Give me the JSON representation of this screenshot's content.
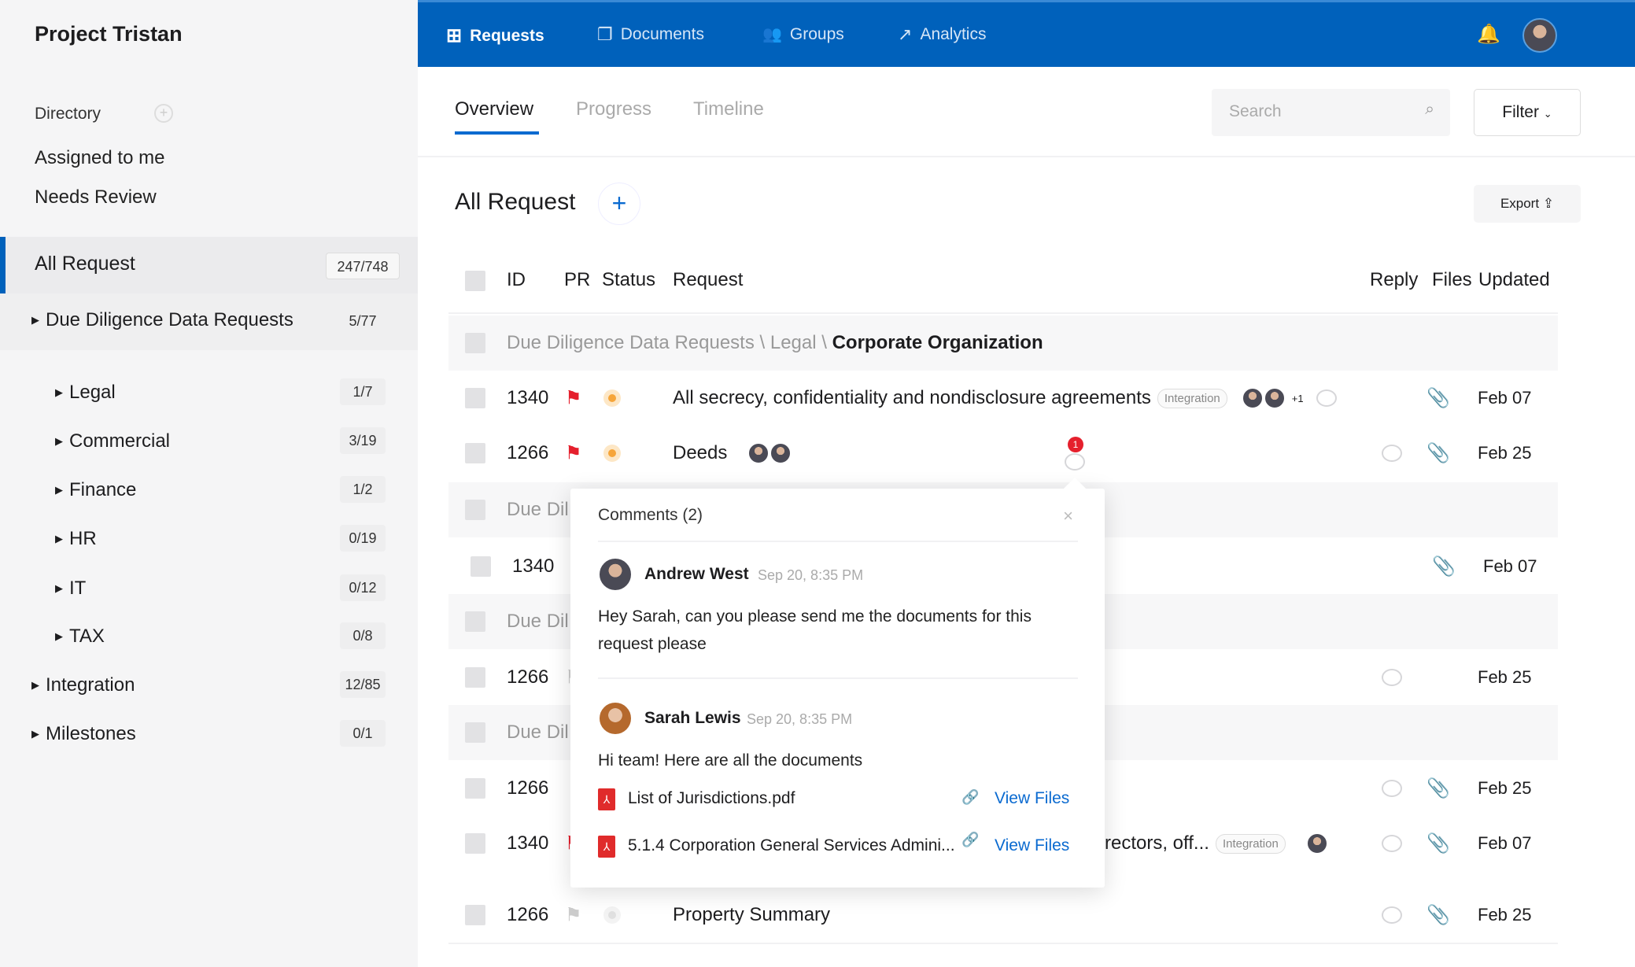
{
  "sidebar": {
    "brand": "Project Tristan",
    "directory": "Directory",
    "assigned": "Assigned to me",
    "needs_review": "Needs Review",
    "all_request": {
      "label": "All Request",
      "count": "247/748"
    },
    "items": [
      {
        "label": "Due Diligence Data Requests",
        "count": "5/77"
      },
      {
        "label": "Legal",
        "count": "1/7"
      },
      {
        "label": "Commercial",
        "count": "3/19"
      },
      {
        "label": "Finance",
        "count": "1/2"
      },
      {
        "label": "HR",
        "count": "0/19"
      },
      {
        "label": "IT",
        "count": "0/12"
      },
      {
        "label": "TAX",
        "count": "0/8"
      },
      {
        "label": "Integration",
        "count": "12/85"
      },
      {
        "label": "Milestones",
        "count": "0/1"
      }
    ]
  },
  "topnav": {
    "requests": "Requests",
    "documents": "Documents",
    "groups": "Groups",
    "analytics": "Analytics"
  },
  "tabs": {
    "overview": "Overview",
    "progress": "Progress",
    "timeline": "Timeline"
  },
  "search": {
    "placeholder": "Search"
  },
  "filter": "Filter",
  "title": "All Request",
  "export": "Export",
  "columns": {
    "id": "ID",
    "pr": "PR",
    "status": "Status",
    "request": "Request",
    "reply": "Reply",
    "files": "Files",
    "updated": "Updated"
  },
  "rows": {
    "g1": {
      "path": "Due Diligence Data Requests \\ Legal \\ ",
      "name": "Corporate Organization"
    },
    "r1": {
      "id": "1340",
      "request": "All secrecy, confidentiality and nondisclosure agreements",
      "tag": "Integration",
      "more": "+1",
      "updated": "Feb 07"
    },
    "r2": {
      "id": "1266",
      "request": "Deeds",
      "comment_count": "1",
      "updated": "Feb 25"
    },
    "g2": {
      "path": "Due Dil"
    },
    "r3": {
      "id": "1340",
      "updated": "Feb 07"
    },
    "g3": {
      "path": "Due Dil"
    },
    "r4": {
      "id": "1266",
      "updated": "Feb 25"
    },
    "g4": {
      "path": "Due Dil"
    },
    "r5": {
      "id": "1266",
      "updated": "Feb 25"
    },
    "r6": {
      "id": "1340",
      "request": "rectors, off...",
      "tag": "Integration",
      "updated": "Feb 07"
    },
    "r7": {
      "id": "1266",
      "request": "Property Summary",
      "updated": "Feb 25"
    }
  },
  "colors": {
    "brand": "#0061bb",
    "flag": "#e5202d",
    "status_pending": "#f6a53a"
  },
  "popup": {
    "title": "Comments",
    "count": "(2)",
    "comments": [
      {
        "author": "Andrew West",
        "time": "Sep 20, 8:35 PM",
        "text": "Hey Sarah, can you please send me the documents for this request please"
      },
      {
        "author": "Sarah Lewis",
        "time": "Sep 20, 8:35 PM",
        "text": "Hi team! Here are all the documents",
        "files": [
          {
            "name": "List of Jurisdictions.pdf",
            "action": "View Files"
          },
          {
            "name": "5.1.4 Corporation General Services Admini...",
            "action": "View Files"
          }
        ]
      }
    ]
  }
}
